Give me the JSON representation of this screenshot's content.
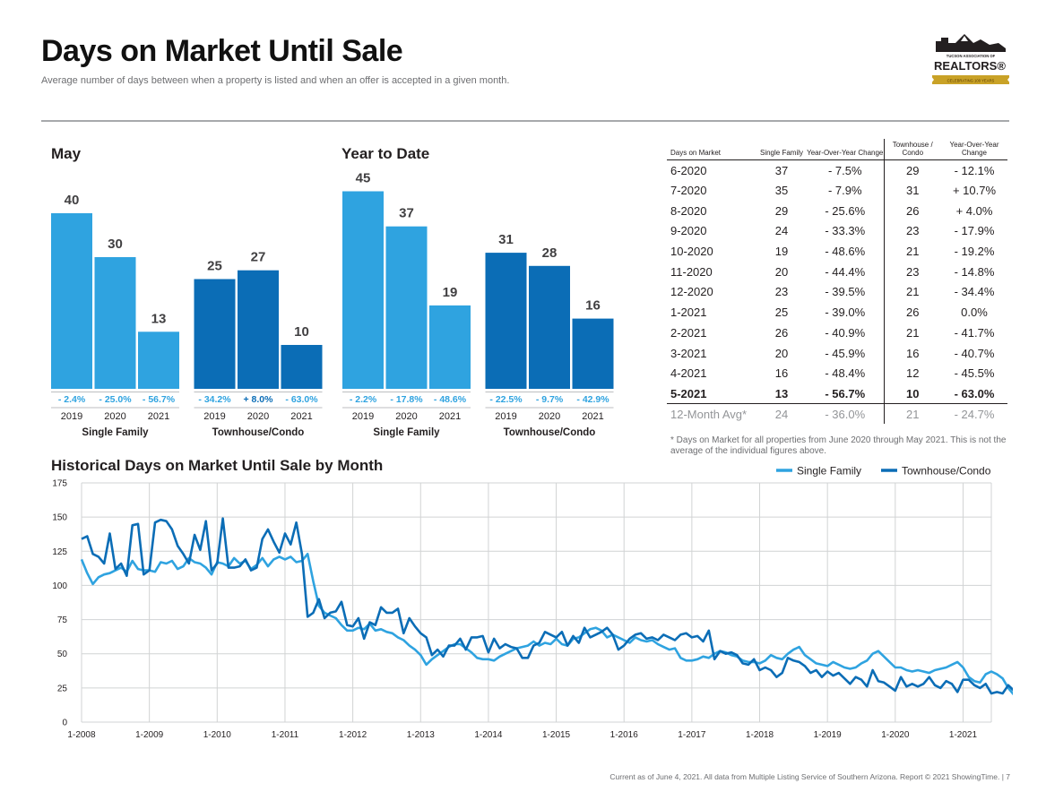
{
  "header": {
    "title": "Days on Market Until Sale",
    "subtitle": "Average number of days between when a property is listed and when an offer is accepted in a given month.",
    "logo_line1": "TUCSON ASSOCIATION OF",
    "logo_line2": "REALTORS®",
    "logo_line3": "CELEBRATING 100 YEARS"
  },
  "colors": {
    "single_family": "#2fa3e0",
    "townhouse": "#0b6db6",
    "neg": "#2fa3e0",
    "pos": "#0b6db6"
  },
  "chart_data": [
    {
      "type": "bar",
      "title": "May",
      "groups": [
        {
          "name": "Single Family",
          "categories": [
            "2019",
            "2020",
            "2021"
          ],
          "values": [
            40,
            30,
            13
          ],
          "changes": [
            "- 2.4%",
            "- 25.0%",
            "- 56.7%"
          ]
        },
        {
          "name": "Townhouse/Condo",
          "categories": [
            "2019",
            "2020",
            "2021"
          ],
          "values": [
            25,
            27,
            10
          ],
          "changes": [
            "- 34.2%",
            "+ 8.0%",
            "- 63.0%"
          ]
        }
      ],
      "ylim": [
        0,
        50
      ]
    },
    {
      "type": "bar",
      "title": "Year to Date",
      "groups": [
        {
          "name": "Single Family",
          "categories": [
            "2019",
            "2020",
            "2021"
          ],
          "values": [
            45,
            37,
            19
          ],
          "changes": [
            "- 2.2%",
            "- 17.8%",
            "- 48.6%"
          ]
        },
        {
          "name": "Townhouse/Condo",
          "categories": [
            "2019",
            "2020",
            "2021"
          ],
          "values": [
            31,
            28,
            16
          ],
          "changes": [
            "- 22.5%",
            "- 9.7%",
            "- 42.9%"
          ]
        }
      ],
      "ylim": [
        0,
        50
      ]
    },
    {
      "type": "table",
      "headers": [
        "Days on Market",
        "Single Family",
        "Year-Over-Year Change",
        "Townhouse / Condo",
        "Year-Over-Year Change"
      ],
      "rows": [
        [
          "6-2020",
          "37",
          "- 7.5%",
          "29",
          "- 12.1%"
        ],
        [
          "7-2020",
          "35",
          "- 7.9%",
          "31",
          "+ 10.7%"
        ],
        [
          "8-2020",
          "29",
          "- 25.6%",
          "26",
          "+ 4.0%"
        ],
        [
          "9-2020",
          "24",
          "- 33.3%",
          "23",
          "- 17.9%"
        ],
        [
          "10-2020",
          "19",
          "- 48.6%",
          "21",
          "- 19.2%"
        ],
        [
          "11-2020",
          "20",
          "- 44.4%",
          "23",
          "- 14.8%"
        ],
        [
          "12-2020",
          "23",
          "- 39.5%",
          "21",
          "- 34.4%"
        ],
        [
          "1-2021",
          "25",
          "- 39.0%",
          "26",
          "0.0%"
        ],
        [
          "2-2021",
          "26",
          "- 40.9%",
          "21",
          "- 41.7%"
        ],
        [
          "3-2021",
          "20",
          "- 45.9%",
          "16",
          "- 40.7%"
        ],
        [
          "4-2021",
          "16",
          "- 48.4%",
          "12",
          "- 45.5%"
        ],
        [
          "5-2021",
          "13",
          "- 56.7%",
          "10",
          "- 63.0%"
        ]
      ],
      "avg_row": [
        "12-Month Avg*",
        "24",
        "- 36.0%",
        "21",
        "- 24.7%"
      ],
      "note": "* Days on Market for all properties from June 2020 through May 2021. This is not the average of the individual figures above."
    },
    {
      "type": "line",
      "title": "Historical Days on Market Until Sale by Month",
      "ylim": [
        0,
        175
      ],
      "yticks": [
        0,
        25,
        50,
        75,
        100,
        125,
        150,
        175
      ],
      "xticks": [
        "1-2008",
        "1-2009",
        "1-2010",
        "1-2011",
        "1-2012",
        "1-2013",
        "1-2014",
        "1-2015",
        "1-2016",
        "1-2017",
        "1-2018",
        "1-2019",
        "1-2020",
        "1-2021"
      ],
      "x_start": "1-2008",
      "series": [
        {
          "name": "Single Family",
          "values": [
            119,
            109,
            101,
            106,
            108,
            109,
            111,
            113,
            110,
            118,
            112,
            111,
            111,
            110,
            117,
            116,
            118,
            112,
            114,
            120,
            117,
            116,
            113,
            108,
            117,
            116,
            114,
            120,
            116,
            118,
            112,
            115,
            120,
            114,
            119,
            121,
            119,
            121,
            117,
            118,
            123,
            103,
            85,
            80,
            78,
            76,
            71,
            67,
            67,
            69,
            68,
            72,
            67,
            68,
            66,
            65,
            62,
            60,
            56,
            53,
            49,
            42,
            46,
            49,
            52,
            55,
            57,
            57,
            54,
            51,
            47,
            46,
            46,
            45,
            48,
            50,
            52,
            54,
            55,
            56,
            59,
            56,
            58,
            57,
            61,
            57,
            56,
            61,
            62,
            65,
            68,
            69,
            67,
            62,
            64,
            62,
            60,
            58,
            62,
            60,
            59,
            60,
            57,
            55,
            53,
            54,
            47,
            45,
            45,
            46,
            48,
            47,
            50,
            52,
            51,
            49,
            48,
            45,
            44,
            44,
            43,
            45,
            49,
            47,
            46,
            50,
            53,
            55,
            49,
            46,
            43,
            42,
            41,
            44,
            42,
            40,
            39,
            40,
            43,
            45,
            50,
            52,
            48,
            44,
            40,
            40,
            38,
            37,
            38,
            37,
            36,
            38,
            39,
            40,
            42,
            44,
            40,
            33,
            30,
            29,
            35,
            37,
            35,
            32,
            25,
            20,
            21,
            24,
            26,
            20,
            16,
            13
          ],
          "color": "#2fa3e0"
        },
        {
          "name": "Townhouse/Condo",
          "values": [
            134,
            136,
            123,
            121,
            116,
            138,
            112,
            116,
            107,
            144,
            145,
            108,
            111,
            146,
            148,
            147,
            141,
            129,
            123,
            116,
            137,
            126,
            147,
            111,
            116,
            149,
            113,
            113,
            114,
            119,
            111,
            113,
            134,
            141,
            132,
            124,
            138,
            130,
            146,
            123,
            77,
            80,
            90,
            76,
            80,
            81,
            88,
            71,
            70,
            76,
            61,
            73,
            71,
            84,
            80,
            80,
            83,
            65,
            76,
            70,
            65,
            62,
            49,
            53,
            48,
            56,
            56,
            61,
            53,
            62,
            62,
            63,
            51,
            61,
            54,
            57,
            55,
            54,
            47,
            47,
            56,
            58,
            66,
            64,
            62,
            66,
            56,
            63,
            58,
            69,
            62,
            64,
            66,
            69,
            64,
            53,
            56,
            61,
            64,
            65,
            61,
            62,
            60,
            64,
            62,
            60,
            64,
            65,
            62,
            63,
            59,
            67,
            46,
            52,
            50,
            51,
            49,
            43,
            42,
            46,
            38,
            40,
            38,
            33,
            36,
            47,
            45,
            44,
            41,
            36,
            38,
            33,
            37,
            34,
            36,
            32,
            28,
            33,
            31,
            26,
            38,
            30,
            29,
            26,
            23,
            33,
            26,
            28,
            26,
            28,
            33,
            27,
            25,
            30,
            28,
            22,
            31,
            31,
            27,
            25,
            28,
            21,
            22,
            21,
            27,
            23,
            15,
            12,
            10
          ],
          "color": "#0b6db6"
        }
      ]
    }
  ],
  "footer": "Current as of June 4, 2021. All data from Multiple Listing Service of Southern Arizona. Report © 2021 ShowingTime.  |  7"
}
